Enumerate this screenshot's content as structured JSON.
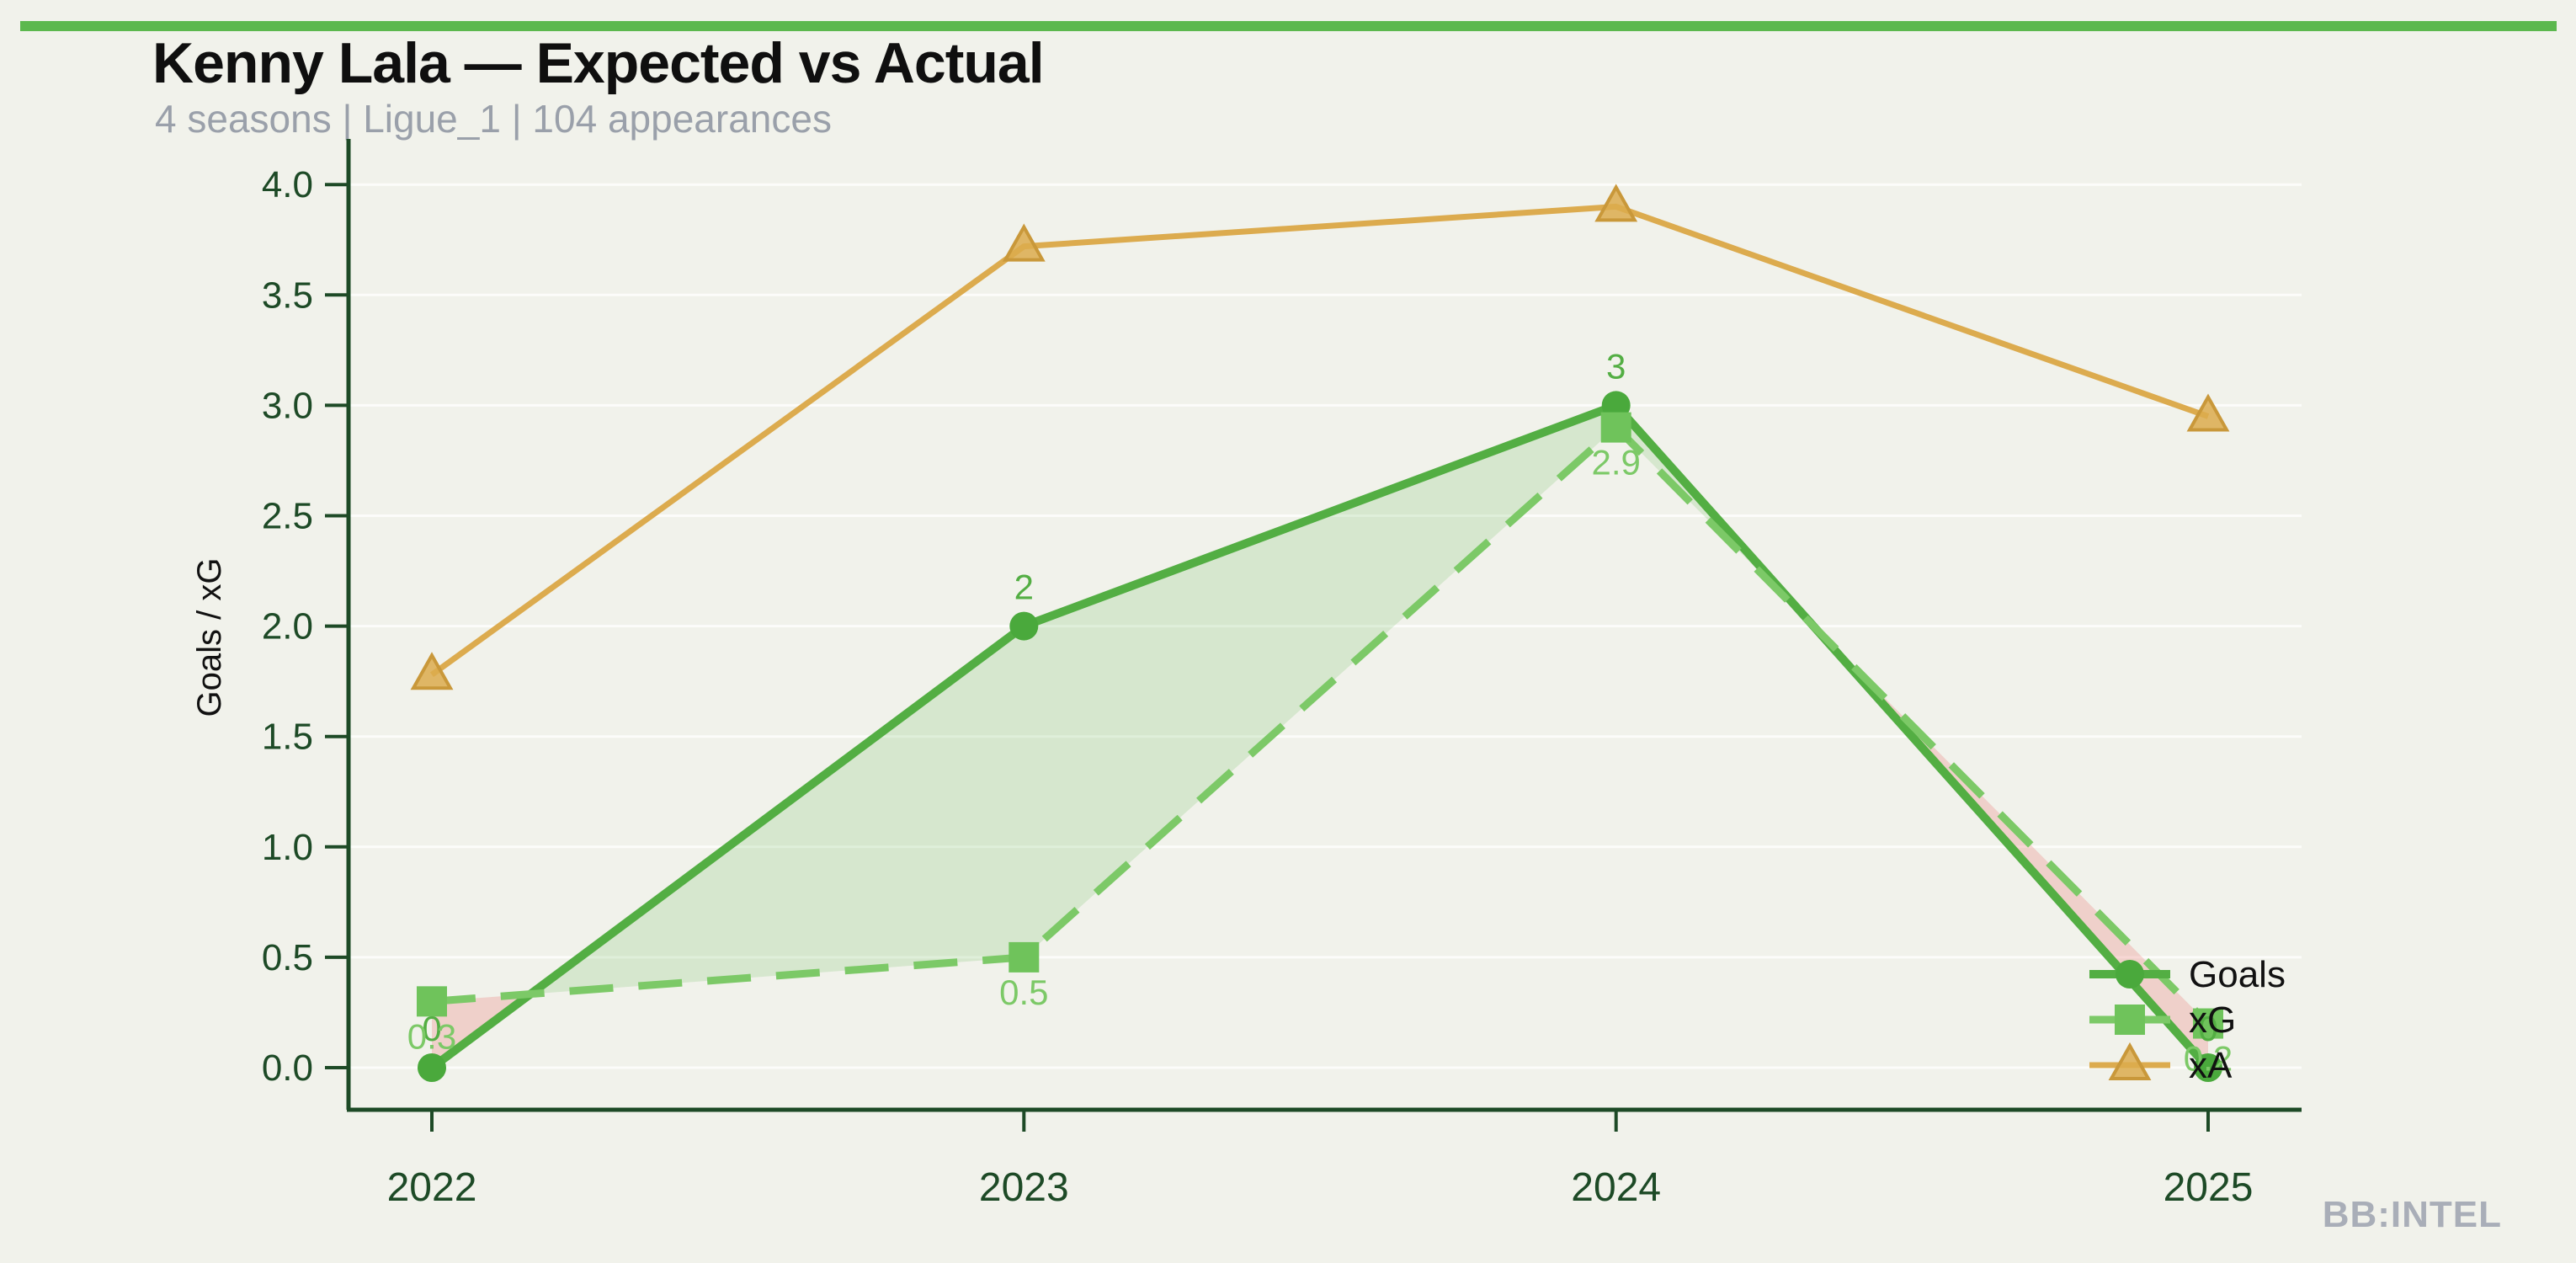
{
  "header": {
    "title": "Kenny Lala — Expected vs Actual",
    "subtitle": "4 seasons | Ligue_1 | 104 appearances"
  },
  "footer": {
    "brand": "BB:INTEL"
  },
  "legend": {
    "items": [
      "Goals",
      "xG",
      "xA"
    ]
  },
  "colors": {
    "background": "#f1f2eb",
    "top_bar": "#5cb84e",
    "goals_line": "#53ae43",
    "goals_marker": "#4aa93c",
    "xg_line": "#7cc967",
    "xg_marker": "#6fc35b",
    "xa_line": "#dcab4e",
    "xa_marker_stroke": "#c9983a",
    "fill_goals_over_xg": "rgba(110,190,90,0.20)",
    "fill_xg_over_goals": "rgba(235,130,125,0.30)",
    "axis": "#1d4a26",
    "grid": "rgba(255,255,255,0.75)",
    "ylabel_text": "#111111",
    "legend_text": "#111111"
  },
  "chart_data": {
    "type": "line",
    "title": "Kenny Lala — Expected vs Actual",
    "xlabel": "",
    "ylabel": "Goals / xG",
    "categories": [
      "2022",
      "2023",
      "2024",
      "2025"
    ],
    "series": [
      {
        "name": "Goals",
        "values": [
          0,
          2,
          3,
          0
        ],
        "point_labels": [
          "0",
          "2",
          "3",
          "0"
        ],
        "style": "solid",
        "marker": "circle"
      },
      {
        "name": "xG",
        "values": [
          0.3,
          0.5,
          2.9,
          0.2
        ],
        "point_labels": [
          "0.3",
          "0.5",
          "2.9",
          "0.2"
        ],
        "style": "dashed",
        "marker": "square"
      },
      {
        "name": "xA",
        "values": [
          1.78,
          3.72,
          3.9,
          2.95
        ],
        "point_labels": null,
        "style": "solid",
        "marker": "triangle"
      }
    ],
    "ylim": [
      0,
      4
    ],
    "yticks": [
      "0.0",
      "0.5",
      "1.0",
      "1.5",
      "2.0",
      "2.5",
      "3.0",
      "3.5",
      "4.0"
    ],
    "grid": true,
    "legend_position": "lower right",
    "fill_between": "Goals vs xG (green where Goals > xG, pink where xG > Goals)"
  }
}
